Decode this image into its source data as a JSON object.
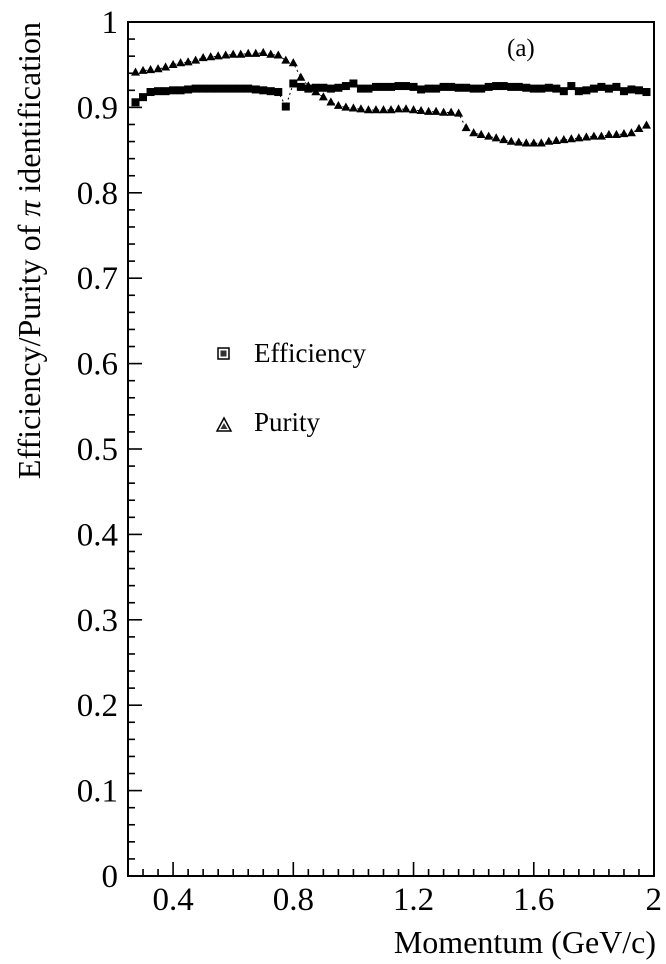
{
  "chart_data": {
    "type": "scatter",
    "title": "",
    "panel_label": "(a)",
    "xlabel": "Momentum  (GeV/c)",
    "ylabel_prefix": "Efficiency/Purity of ",
    "ylabel_symbol": "π",
    "ylabel_suffix": " identification",
    "xlim": [
      0.25,
      2.0
    ],
    "ylim": [
      0,
      1
    ],
    "x_ticks": [
      0.4,
      0.8,
      1.2,
      1.6,
      2
    ],
    "x_tick_labels": [
      "0.4",
      "0.8",
      "1.2",
      "1.6",
      "2"
    ],
    "y_ticks": [
      0,
      0.1,
      0.2,
      0.3,
      0.4,
      0.5,
      0.6,
      0.7,
      0.8,
      0.9,
      1
    ],
    "y_tick_labels": [
      "0",
      "0.1",
      "0.2",
      "0.3",
      "0.4",
      "0.5",
      "0.6",
      "0.7",
      "0.8",
      "0.9",
      "1"
    ],
    "legend_position": "center-left",
    "grid": false,
    "series": [
      {
        "name": "Efficiency",
        "marker": "square",
        "x": [
          0.275,
          0.3,
          0.325,
          0.35,
          0.375,
          0.4,
          0.425,
          0.45,
          0.475,
          0.5,
          0.525,
          0.55,
          0.575,
          0.6,
          0.625,
          0.65,
          0.675,
          0.7,
          0.725,
          0.75,
          0.775,
          0.8,
          0.825,
          0.85,
          0.875,
          0.9,
          0.925,
          0.95,
          0.975,
          1.0,
          1.025,
          1.05,
          1.075,
          1.1,
          1.125,
          1.15,
          1.175,
          1.2,
          1.225,
          1.25,
          1.275,
          1.3,
          1.325,
          1.35,
          1.375,
          1.4,
          1.425,
          1.45,
          1.475,
          1.5,
          1.525,
          1.55,
          1.575,
          1.6,
          1.625,
          1.65,
          1.675,
          1.7,
          1.725,
          1.75,
          1.775,
          1.8,
          1.825,
          1.85,
          1.875,
          1.9,
          1.925,
          1.95,
          1.975
        ],
        "y": [
          0.906,
          0.912,
          0.918,
          0.919,
          0.919,
          0.92,
          0.92,
          0.921,
          0.922,
          0.922,
          0.922,
          0.922,
          0.922,
          0.922,
          0.922,
          0.922,
          0.921,
          0.92,
          0.919,
          0.918,
          0.901,
          0.928,
          0.924,
          0.922,
          0.923,
          0.923,
          0.922,
          0.923,
          0.925,
          0.928,
          0.922,
          0.922,
          0.924,
          0.924,
          0.924,
          0.925,
          0.925,
          0.924,
          0.921,
          0.922,
          0.922,
          0.924,
          0.924,
          0.923,
          0.923,
          0.922,
          0.922,
          0.924,
          0.925,
          0.925,
          0.924,
          0.924,
          0.923,
          0.922,
          0.922,
          0.923,
          0.922,
          0.919,
          0.925,
          0.919,
          0.92,
          0.922,
          0.924,
          0.922,
          0.924,
          0.919,
          0.921,
          0.92,
          0.918
        ]
      },
      {
        "name": "Purity",
        "marker": "triangle",
        "x": [
          0.275,
          0.3,
          0.325,
          0.35,
          0.375,
          0.4,
          0.425,
          0.45,
          0.475,
          0.5,
          0.525,
          0.55,
          0.575,
          0.6,
          0.625,
          0.65,
          0.675,
          0.7,
          0.725,
          0.75,
          0.775,
          0.8,
          0.825,
          0.85,
          0.875,
          0.9,
          0.925,
          0.95,
          0.975,
          1.0,
          1.025,
          1.05,
          1.075,
          1.1,
          1.125,
          1.15,
          1.175,
          1.2,
          1.225,
          1.25,
          1.275,
          1.3,
          1.325,
          1.35,
          1.375,
          1.4,
          1.425,
          1.45,
          1.475,
          1.5,
          1.525,
          1.55,
          1.575,
          1.6,
          1.625,
          1.65,
          1.675,
          1.7,
          1.725,
          1.75,
          1.775,
          1.8,
          1.825,
          1.85,
          1.875,
          1.9,
          1.925,
          1.95,
          1.975
        ],
        "y": [
          0.941,
          0.943,
          0.944,
          0.945,
          0.947,
          0.95,
          0.952,
          0.953,
          0.955,
          0.958,
          0.959,
          0.96,
          0.961,
          0.962,
          0.962,
          0.963,
          0.963,
          0.964,
          0.962,
          0.961,
          0.955,
          0.952,
          0.935,
          0.925,
          0.918,
          0.912,
          0.906,
          0.902,
          0.9,
          0.899,
          0.898,
          0.897,
          0.897,
          0.897,
          0.897,
          0.898,
          0.898,
          0.897,
          0.896,
          0.895,
          0.895,
          0.894,
          0.894,
          0.893,
          0.876,
          0.87,
          0.868,
          0.866,
          0.864,
          0.862,
          0.86,
          0.859,
          0.858,
          0.858,
          0.858,
          0.86,
          0.861,
          0.862,
          0.863,
          0.864,
          0.865,
          0.866,
          0.866,
          0.868,
          0.868,
          0.869,
          0.87,
          0.875,
          0.879
        ]
      }
    ]
  }
}
